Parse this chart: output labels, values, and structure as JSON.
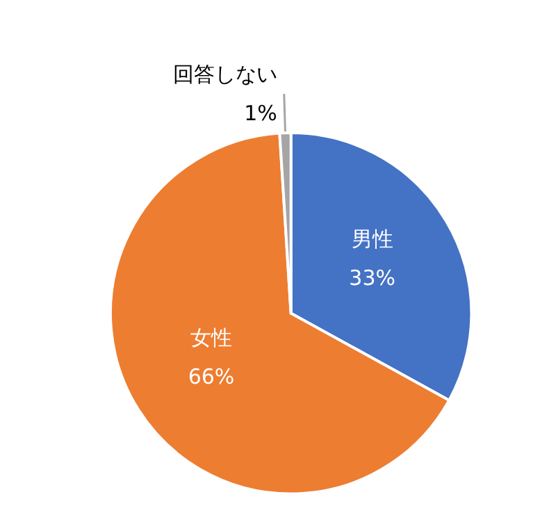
{
  "chart_data": {
    "type": "pie",
    "categories": [
      "男性",
      "女性",
      "回答しない"
    ],
    "values": [
      33,
      66,
      1
    ],
    "colors": [
      "#4472c4",
      "#ed7d31",
      "#a5a5a5"
    ],
    "value_labels": [
      "33%",
      "66%",
      "1%"
    ],
    "legend": false
  }
}
